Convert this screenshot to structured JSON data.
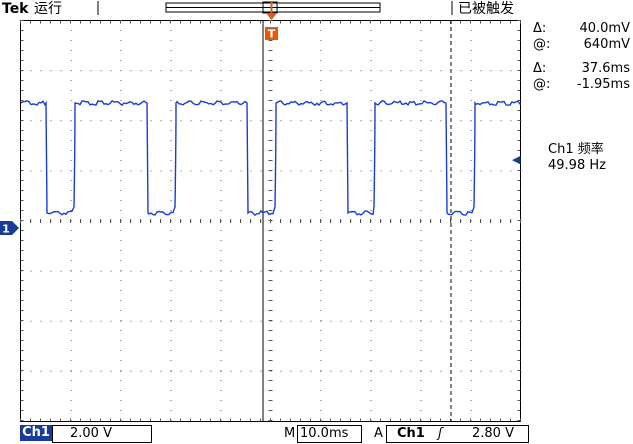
{
  "header": {
    "brand": "Tek",
    "run_state": "运行",
    "trigger_state": "已被触发"
  },
  "markers": {
    "trigger_position": "T",
    "channel_ground": "1",
    "trigger_level_arrow": "◀"
  },
  "measurements": {
    "delta_v_label": "Δ:",
    "delta_v": "40.0mV",
    "at_v_label": "@:",
    "at_v": "640mV",
    "delta_t_label": "Δ:",
    "delta_t": "37.6ms",
    "at_t_label": "@:",
    "at_t": "-1.95ms",
    "freq_label": "Ch1 频率",
    "freq_value": "49.98 Hz"
  },
  "footer": {
    "channel": "Ch1",
    "volts_div": "2.00 V",
    "time_label": "M",
    "time_div": "10.0ms",
    "trig_mode": "A",
    "trig_source": "Ch1",
    "trig_slope": "ʃ",
    "trig_level": "2.80 V"
  },
  "colors": {
    "trace": "#1a3bd6",
    "trigger_marker": "#e05a10",
    "channel_marker": "#1a3b9a"
  }
}
